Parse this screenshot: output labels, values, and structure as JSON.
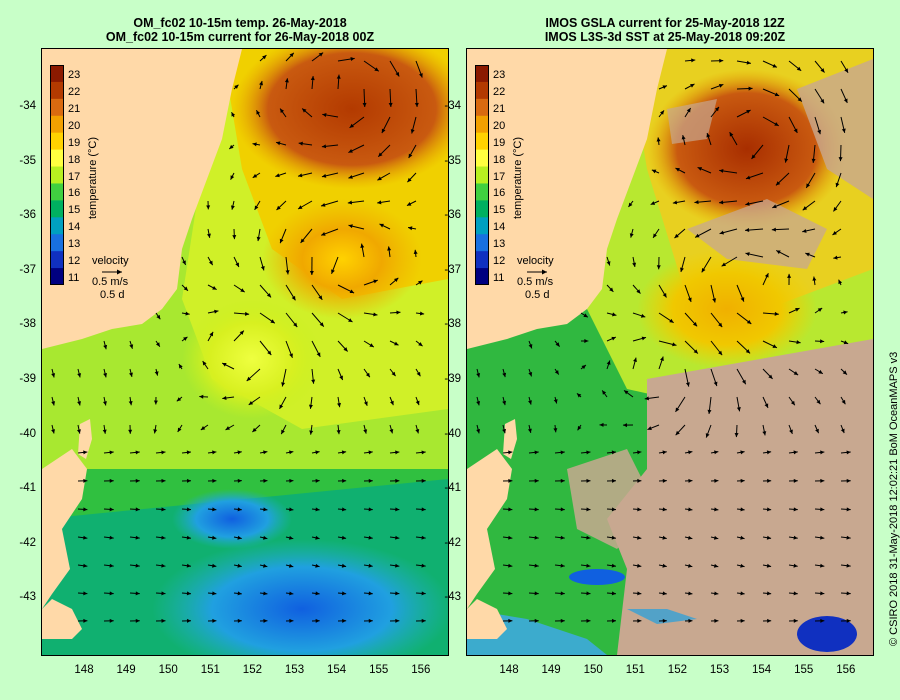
{
  "left_panel": {
    "title_line1": "OM_fc02 10-15m temp. 26-May-2018",
    "title_line2": "OM_fc02 10-15m current for 26-May-2018 00Z"
  },
  "right_panel": {
    "title_line1": "IMOS GSLA current for 25-May-2018 12Z",
    "title_line2": "IMOS L3S-3d SST at 25-May-2018 09:20Z"
  },
  "colorbar": {
    "label": "temperature (°C)",
    "ticks": [
      "23",
      "22",
      "21",
      "20",
      "19",
      "18",
      "17",
      "16",
      "15",
      "14",
      "13",
      "12",
      "11"
    ],
    "colors": [
      "#8b1a00",
      "#b33a00",
      "#d96a10",
      "#f2a000",
      "#ffd200",
      "#ffff40",
      "#b8f020",
      "#40d040",
      "#00b060",
      "#00a0c0",
      "#1870e0",
      "#1030c0",
      "#000080"
    ]
  },
  "velocity_key": {
    "title": "velocity",
    "speed": "0.5 m/s",
    "duration": "0.5 d"
  },
  "axes": {
    "lat_labels": [
      "-34",
      "-35",
      "-36",
      "-37",
      "-38",
      "-39",
      "-40",
      "-41",
      "-42",
      "-43"
    ],
    "lon_labels": [
      "148",
      "149",
      "150",
      "151",
      "152",
      "153",
      "154",
      "155",
      "156"
    ]
  },
  "copyright": "© CSIRO 2018   31-May-2018 12:02:21 BoM OceanMAPS v3",
  "colors": {
    "background": "#c8ffc8",
    "land": "#ffd9a8",
    "no_data": "#c8a890",
    "arrow": "#000000"
  }
}
